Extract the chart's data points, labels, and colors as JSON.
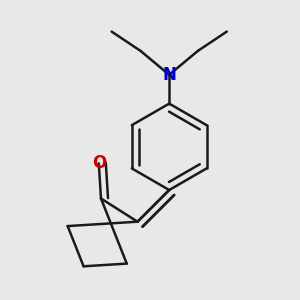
{
  "bg_color": "#e8e8e8",
  "bond_color": "#1a1a1a",
  "oxygen_color": "#cc0000",
  "nitrogen_color": "#0000cc",
  "line_width": 1.8,
  "dbo": 0.018,
  "font_size_atom": 12
}
